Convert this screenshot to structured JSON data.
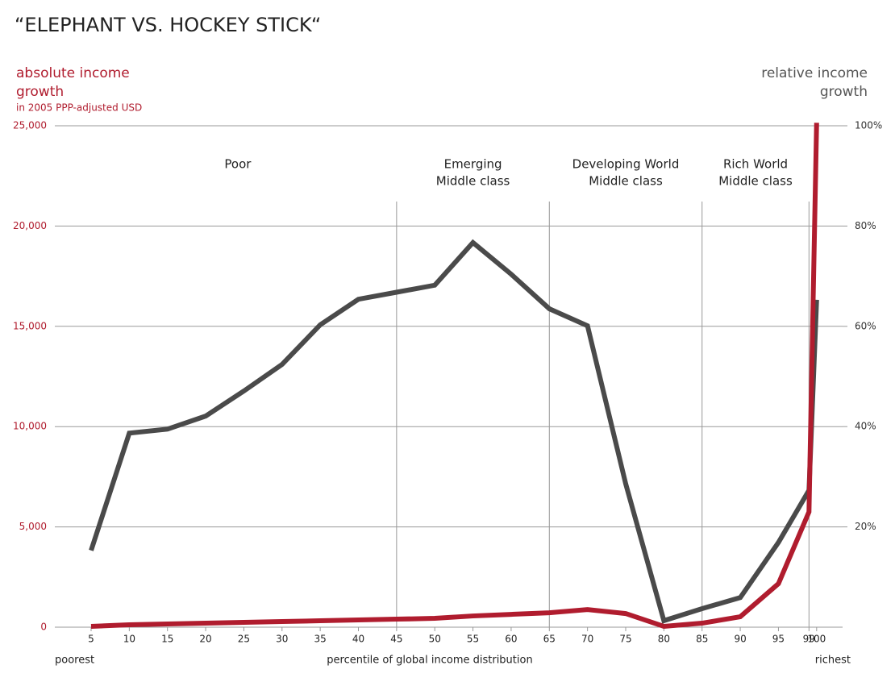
{
  "chart_data": {
    "type": "line",
    "title": "“ELEPHANT VS. HOCKEY STICK“",
    "y_label": [
      "absolute income",
      "growth"
    ],
    "y_sublabel": "in 2005 PPP-adjusted USD",
    "y2_label": [
      "relative income",
      "growth"
    ],
    "x_label": "percentile of global income distribution",
    "x_left_note": "poorest",
    "x_right_note": "richest",
    "x": [
      5,
      10,
      15,
      20,
      25,
      30,
      35,
      40,
      45,
      50,
      55,
      60,
      65,
      70,
      75,
      80,
      85,
      90,
      95,
      99,
      100
    ],
    "xlim": [
      0.25,
      103.4
    ],
    "xticks": [
      5,
      10,
      15,
      20,
      25,
      30,
      35,
      40,
      45,
      50,
      55,
      60,
      65,
      70,
      75,
      80,
      85,
      90,
      95,
      99,
      100
    ],
    "ylim": [
      0,
      25000
    ],
    "yticks": [
      0,
      {
        "value": 5000,
        "label": "5,000"
      },
      {
        "value": 10000,
        "label": "10,000"
      },
      {
        "value": 15000,
        "label": "15,000"
      },
      {
        "value": 20000,
        "label": "20,000"
      },
      {
        "value": 25000,
        "label": "25,000"
      }
    ],
    "y2lim": [
      0,
      100
    ],
    "y2ticks": [
      {
        "value": 20,
        "label": "20%"
      },
      {
        "value": 40,
        "label": "40%"
      },
      {
        "value": 60,
        "label": "60%"
      },
      {
        "value": 80,
        "label": "80%"
      },
      {
        "value": 100,
        "label": "100%"
      }
    ],
    "grid": true,
    "region_dividers": [
      45,
      65,
      85,
      99
    ],
    "regions": [
      {
        "lines": [
          "Poor"
        ]
      },
      {
        "lines": [
          "Emerging",
          "Middle class"
        ]
      },
      {
        "lines": [
          "Developing World",
          "Middle class"
        ]
      },
      {
        "lines": [
          "Rich World",
          "Middle class"
        ]
      }
    ],
    "series": [
      {
        "color": "#4a4a4a",
        "axis": "y2",
        "values": [
          15.3,
          38.7,
          39.5,
          42.1,
          47.1,
          52.4,
          60.3,
          65.4,
          66.8,
          68.2,
          76.7,
          70.4,
          63.5,
          60.1,
          28.6,
          1.3,
          3.7,
          5.9,
          16.9,
          27.3,
          65.3
        ]
      },
      {
        "color": "#b01c2e",
        "axis": "y",
        "values": [
          40,
          120,
          160,
          200,
          240,
          280,
          320,
          360,
          400,
          440,
          560,
          640,
          720,
          880,
          680,
          40,
          200,
          520,
          2170,
          5750,
          25150
        ]
      }
    ]
  }
}
